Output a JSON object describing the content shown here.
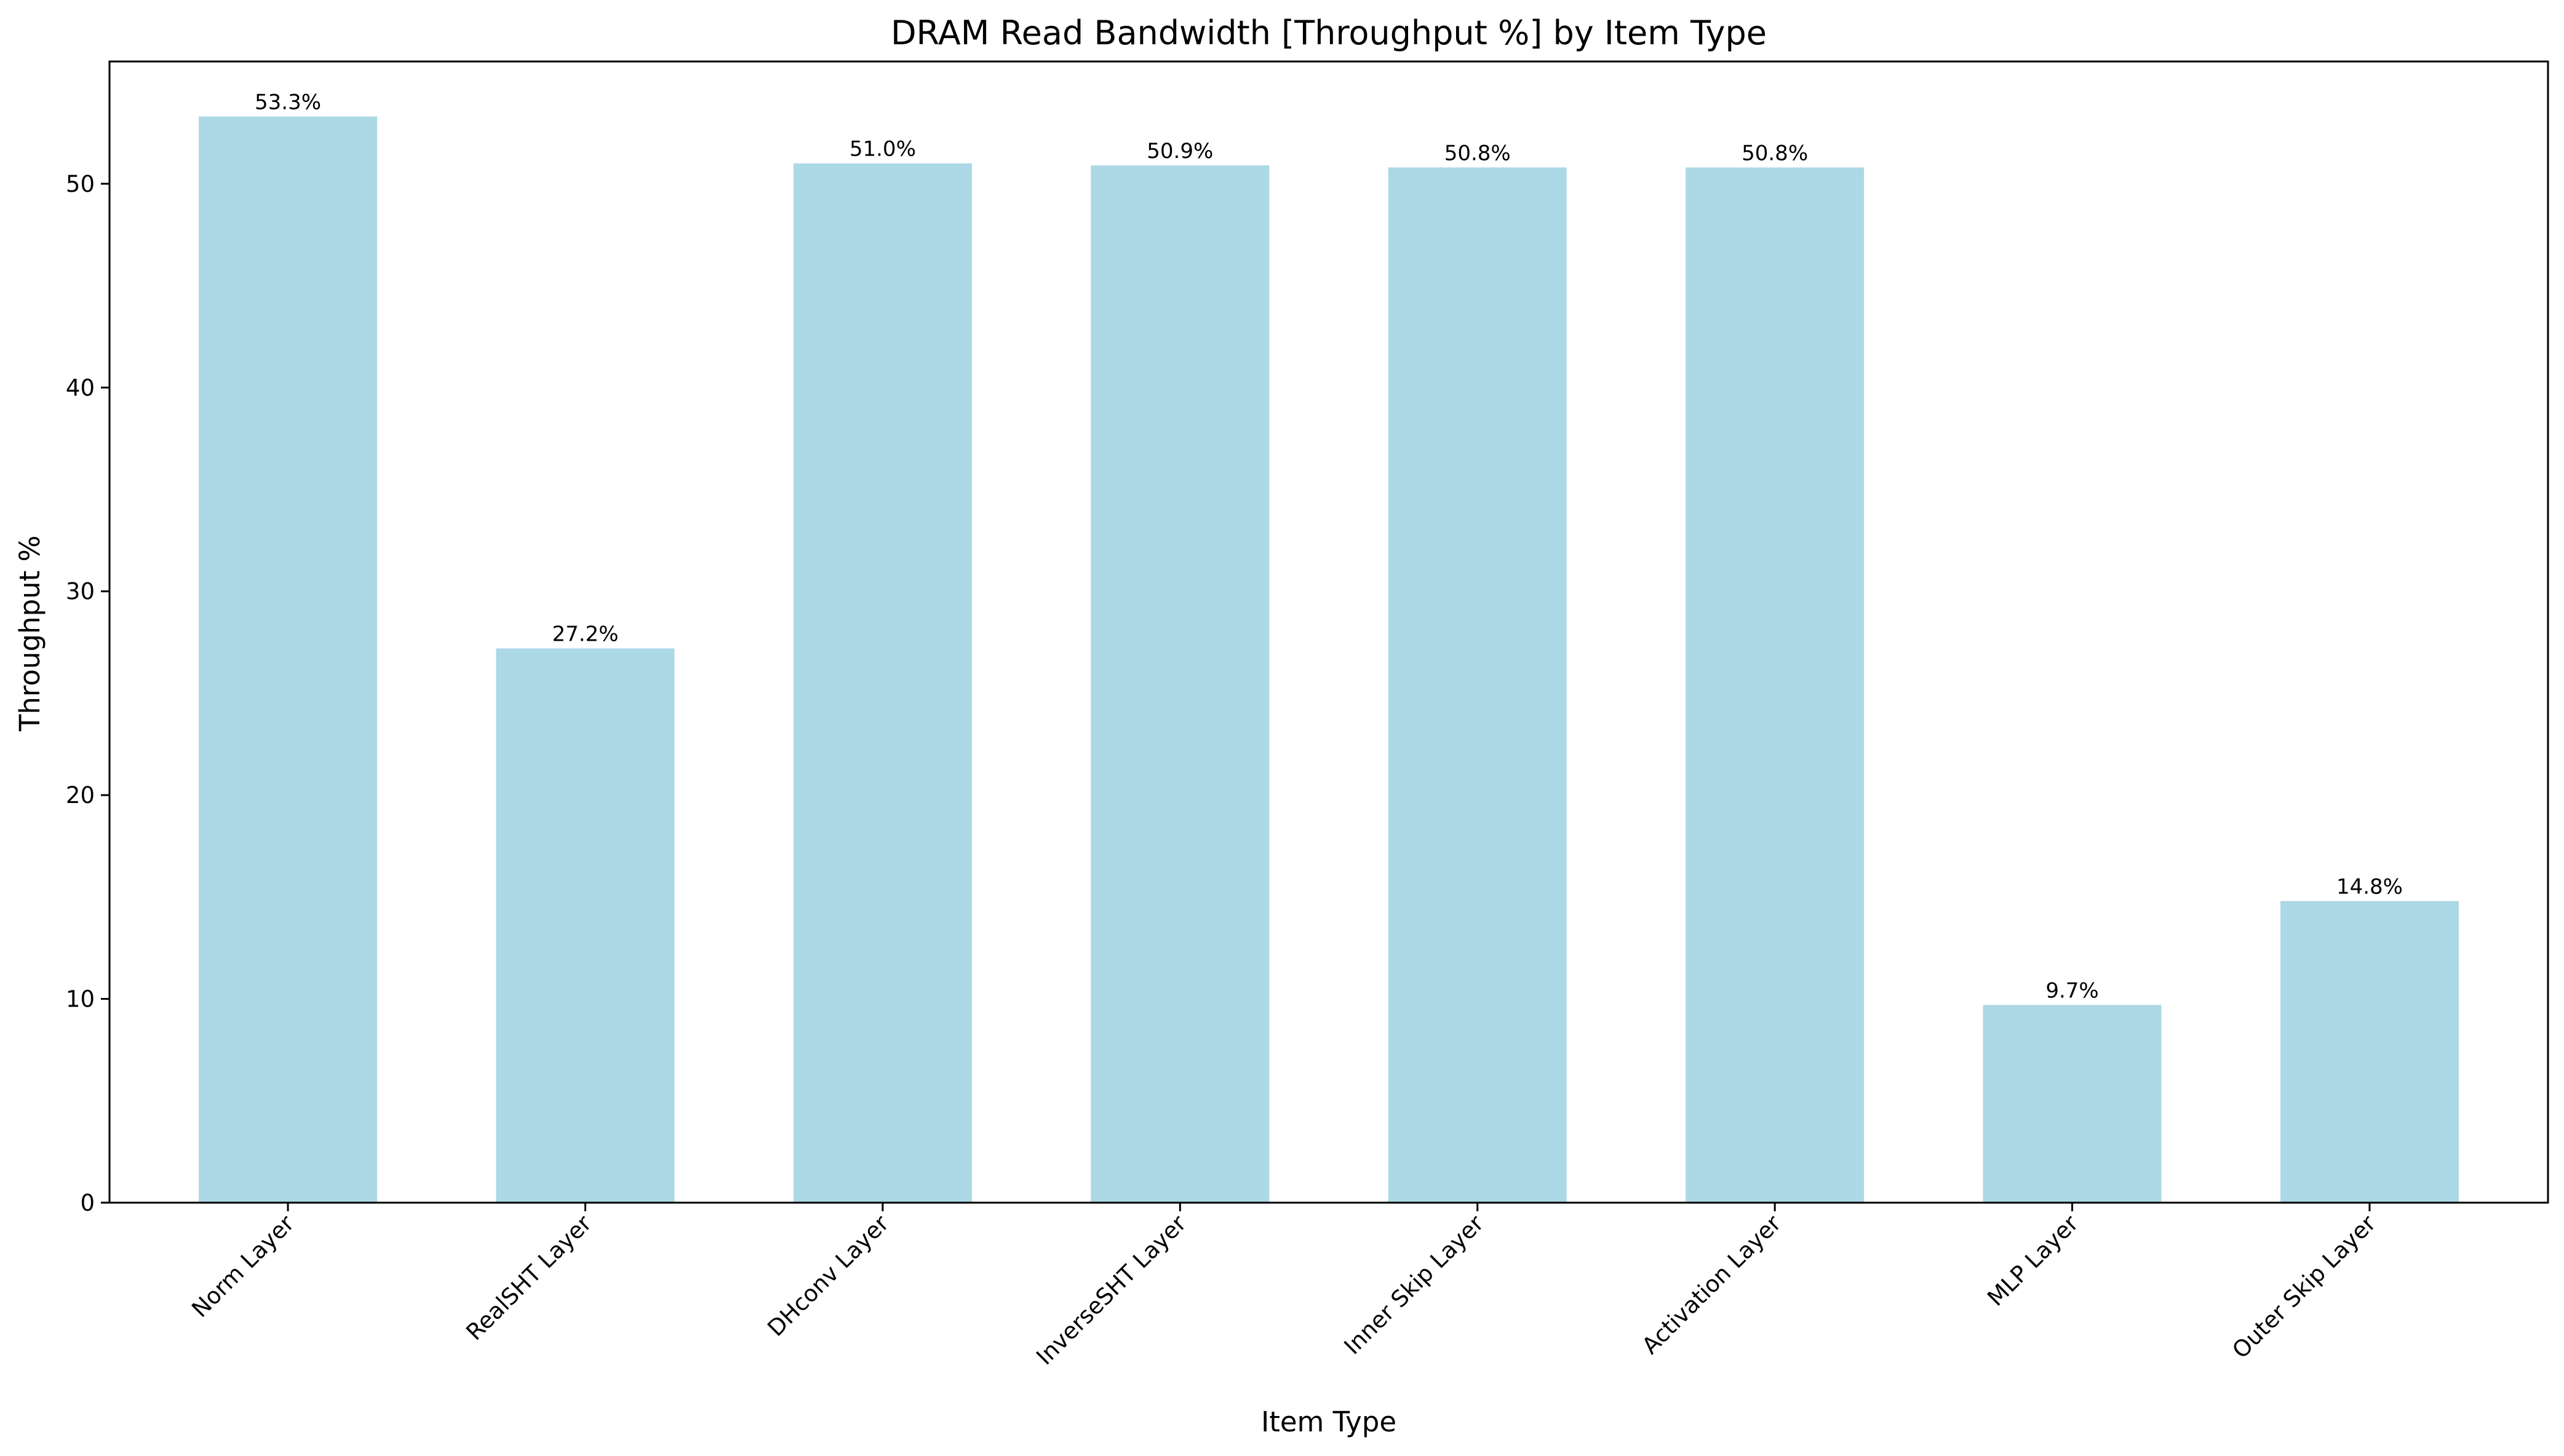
{
  "colors": {
    "bar": "#add8e6",
    "axis": "#000000",
    "background": "#ffffff"
  },
  "chart_data": {
    "type": "bar",
    "title": "DRAM Read Bandwidth [Throughput %] by Item Type",
    "xlabel": "Item Type",
    "ylabel": "Throughput %",
    "categories": [
      "Norm Layer",
      "RealSHT Layer",
      "DHconv Layer",
      "InverseSHT Layer",
      "Inner Skip Layer",
      "Activation Layer",
      "MLP Layer",
      "Outer Skip Layer"
    ],
    "values": [
      53.3,
      27.2,
      51.0,
      50.9,
      50.8,
      50.8,
      9.7,
      14.8
    ],
    "value_labels": [
      "53.3%",
      "27.2%",
      "51.0%",
      "50.9%",
      "50.8%",
      "50.8%",
      "9.7%",
      "14.8%"
    ],
    "ylim": [
      0,
      56
    ],
    "yticks": [
      0,
      10,
      20,
      30,
      40,
      50
    ],
    "grid": false,
    "legend": "none"
  }
}
